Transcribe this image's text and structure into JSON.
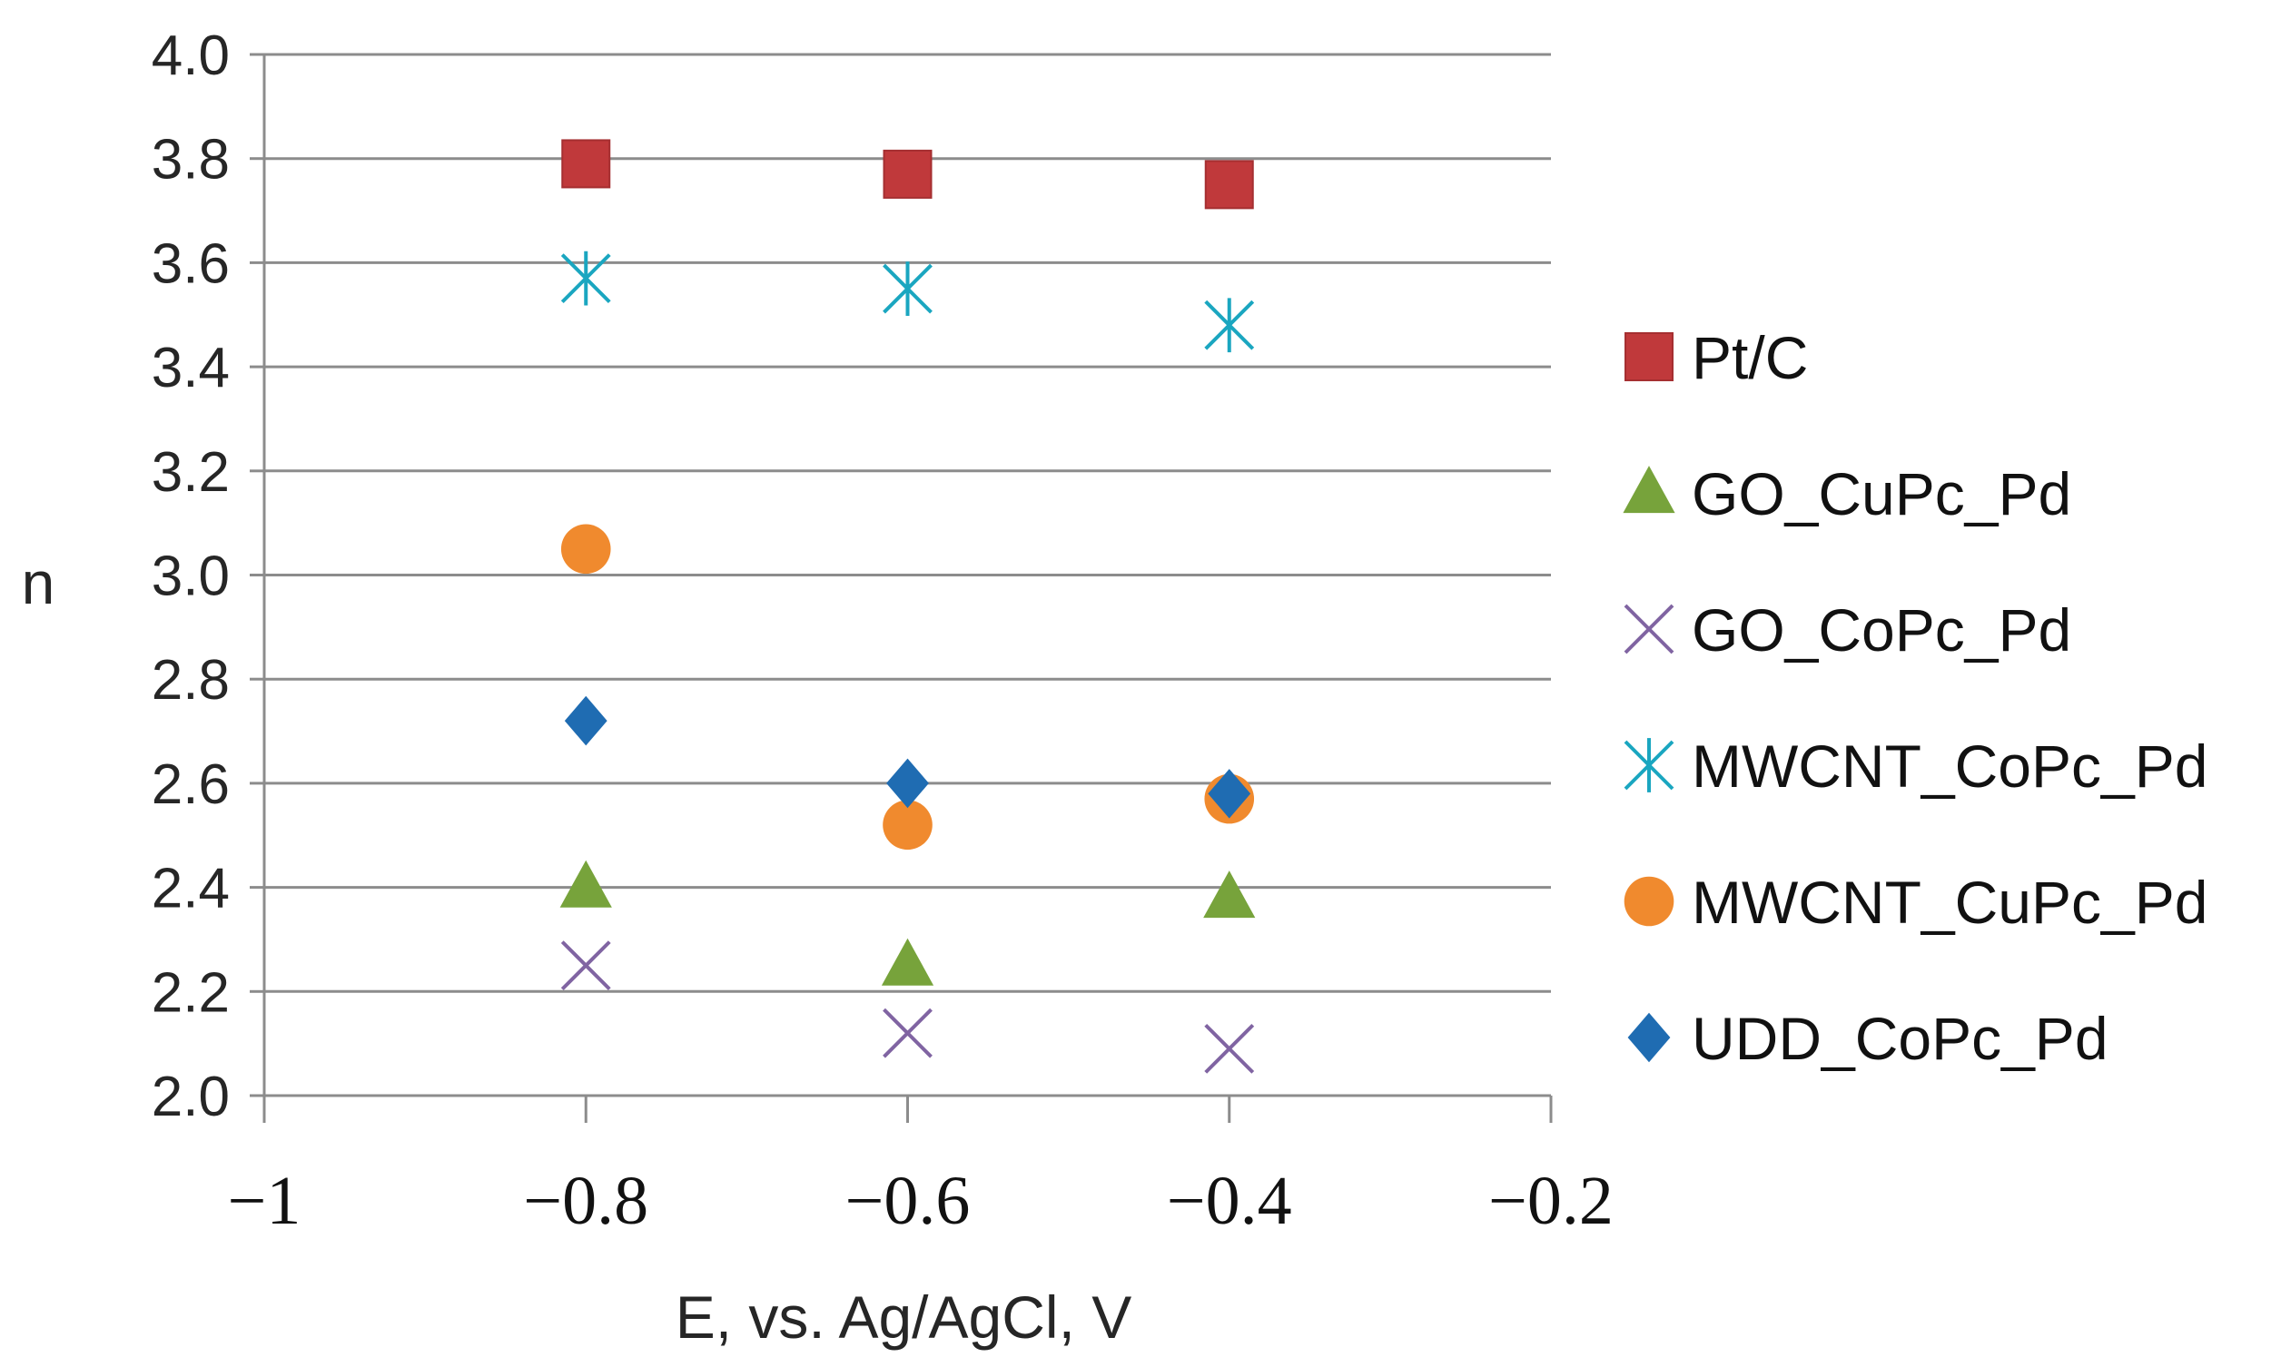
{
  "chart_data": {
    "type": "scatter",
    "title": "",
    "xlabel": "E, vs. Ag/AgCl, V",
    "ylabel": "n",
    "xlim": [
      -1,
      -0.2
    ],
    "ylim": [
      2.0,
      4.0
    ],
    "x_ticks": [
      -1,
      -0.8,
      -0.6,
      -0.4,
      -0.2
    ],
    "x_tick_labels": [
      "−1",
      "−0.8",
      "−0.6",
      "−0.4",
      "−0.2"
    ],
    "y_ticks": [
      2.0,
      2.2,
      2.4,
      2.6,
      2.8,
      3.0,
      3.2,
      3.4,
      3.6,
      3.8,
      4.0
    ],
    "y_tick_labels": [
      "2.0",
      "2.2",
      "2.4",
      "2.6",
      "2.8",
      "3.0",
      "3.2",
      "3.4",
      "3.6",
      "3.8",
      "4.0"
    ],
    "grid": "horizontal",
    "legend_position": "right",
    "series": [
      {
        "name": "Pt/C",
        "marker": "square",
        "color": "#C0393B",
        "x": [
          -0.8,
          -0.6,
          -0.4
        ],
        "y": [
          3.79,
          3.77,
          3.75
        ]
      },
      {
        "name": "GO_CuPc_Pd",
        "marker": "triangle",
        "color": "#77A33B",
        "x": [
          -0.8,
          -0.6,
          -0.4
        ],
        "y": [
          2.4,
          2.25,
          2.38
        ]
      },
      {
        "name": "GO_CoPc_Pd",
        "marker": "x",
        "color": "#8064A2",
        "x": [
          -0.8,
          -0.6,
          -0.4
        ],
        "y": [
          2.25,
          2.12,
          2.09
        ]
      },
      {
        "name": "MWCNT_CoPc_Pd",
        "marker": "star",
        "color": "#1AA6C0",
        "x": [
          -0.8,
          -0.6,
          -0.4
        ],
        "y": [
          3.57,
          3.55,
          3.48
        ]
      },
      {
        "name": "MWCNT_CuPc_Pd",
        "marker": "circle",
        "color": "#F08A2E",
        "x": [
          -0.8,
          -0.6,
          -0.4
        ],
        "y": [
          3.05,
          2.52,
          2.57
        ]
      },
      {
        "name": "UDD_CoPc_Pd",
        "marker": "diamond",
        "color": "#1F6CB2",
        "x": [
          -0.8,
          -0.6,
          -0.4
        ],
        "y": [
          2.72,
          2.6,
          2.58
        ]
      }
    ]
  }
}
